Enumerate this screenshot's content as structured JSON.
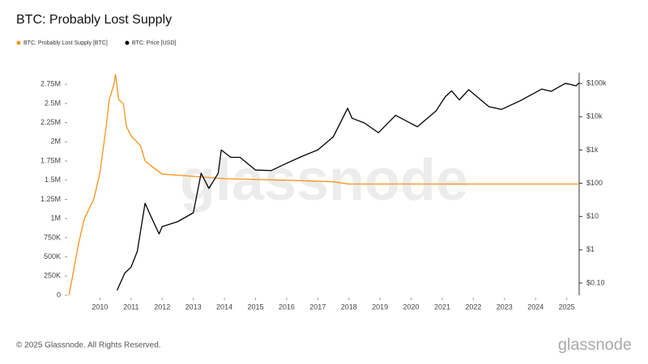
{
  "chart_data": {
    "type": "line",
    "title": "BTC: Probably Lost Supply",
    "copyright": "© 2025 Glassnode. All Rights Reserved.",
    "brand": "glassnode",
    "xlim": [
      2009.0,
      2025.4
    ],
    "xticks": [
      2010,
      2011,
      2012,
      2013,
      2014,
      2015,
      2016,
      2017,
      2018,
      2019,
      2020,
      2021,
      2022,
      2023,
      2024,
      2025
    ],
    "ylim": [
      0,
      2900000
    ],
    "yticks": [
      0,
      {
        "value": 250000,
        "label": "250K"
      },
      {
        "value": 500000,
        "label": "500K"
      },
      {
        "value": 750000,
        "label": "750K"
      },
      {
        "value": 1000000,
        "label": "1M"
      },
      {
        "value": 1250000,
        "label": "1.25M"
      },
      {
        "value": 1500000,
        "label": "1.5M"
      },
      {
        "value": 1750000,
        "label": "1.75M"
      },
      {
        "value": 2000000,
        "label": "2M"
      },
      {
        "value": 2250000,
        "label": "2.25M"
      },
      {
        "value": 2500000,
        "label": "2.5M"
      },
      {
        "value": 2750000,
        "label": "2.75M"
      }
    ],
    "y2lim": [
      0.043,
      209000
    ],
    "y2log": true,
    "y2ticks": [
      {
        "value": 0.1,
        "label": "$0.10"
      },
      {
        "value": 1,
        "label": "$1"
      },
      {
        "value": 10,
        "label": "$10"
      },
      {
        "value": 100,
        "label": "$100"
      },
      {
        "value": 1000,
        "label": "$1k"
      },
      {
        "value": 10000,
        "label": "$10k"
      },
      {
        "value": 100000,
        "label": "$100k"
      }
    ],
    "grid": false,
    "legend": "top-left",
    "series": [
      {
        "name": "BTC: Probably Lost Supply [BTC]",
        "color": "#f7931a",
        "x": [
          2009.0,
          2009.1,
          2009.3,
          2009.5,
          2009.8,
          2010.0,
          2010.2,
          2010.3,
          2010.45,
          2010.5,
          2010.6,
          2010.75,
          2010.85,
          2011.0,
          2011.3,
          2011.45,
          2011.6,
          2012.0,
          2013.0,
          2014.0,
          2016.0,
          2017.5,
          2018.0,
          2025.4
        ],
        "values": [
          0,
          200000,
          650000,
          1000000,
          1250000,
          1600000,
          2200000,
          2550000,
          2750000,
          2880000,
          2550000,
          2500000,
          2200000,
          2080000,
          1950000,
          1750000,
          1700000,
          1580000,
          1550000,
          1520000,
          1500000,
          1480000,
          1450000,
          1450000
        ]
      },
      {
        "name": "BTC: Price [USD]",
        "color": "#000000",
        "axis": "y2",
        "x": [
          2010.55,
          2010.8,
          2011.0,
          2011.2,
          2011.45,
          2011.6,
          2011.9,
          2012.0,
          2012.5,
          2013.0,
          2013.25,
          2013.5,
          2013.8,
          2013.9,
          2014.2,
          2014.5,
          2015.0,
          2015.5,
          2016.0,
          2016.5,
          2017.0,
          2017.5,
          2017.96,
          2018.1,
          2018.5,
          2018.95,
          2019.5,
          2020.2,
          2020.8,
          2021.1,
          2021.3,
          2021.55,
          2021.85,
          2022.5,
          2022.9,
          2023.5,
          2024.2,
          2024.5,
          2024.95,
          2025.1,
          2025.3,
          2025.4
        ],
        "values": [
          0.06,
          0.2,
          0.3,
          0.9,
          25,
          12,
          3,
          5,
          7,
          13,
          200,
          70,
          200,
          1000,
          600,
          600,
          250,
          240,
          400,
          650,
          1000,
          2500,
          18000,
          9000,
          6500,
          3300,
          11000,
          5000,
          15000,
          40000,
          60000,
          32000,
          65000,
          20000,
          16500,
          30000,
          68000,
          58000,
          100000,
          95000,
          85000,
          105000
        ]
      }
    ]
  }
}
